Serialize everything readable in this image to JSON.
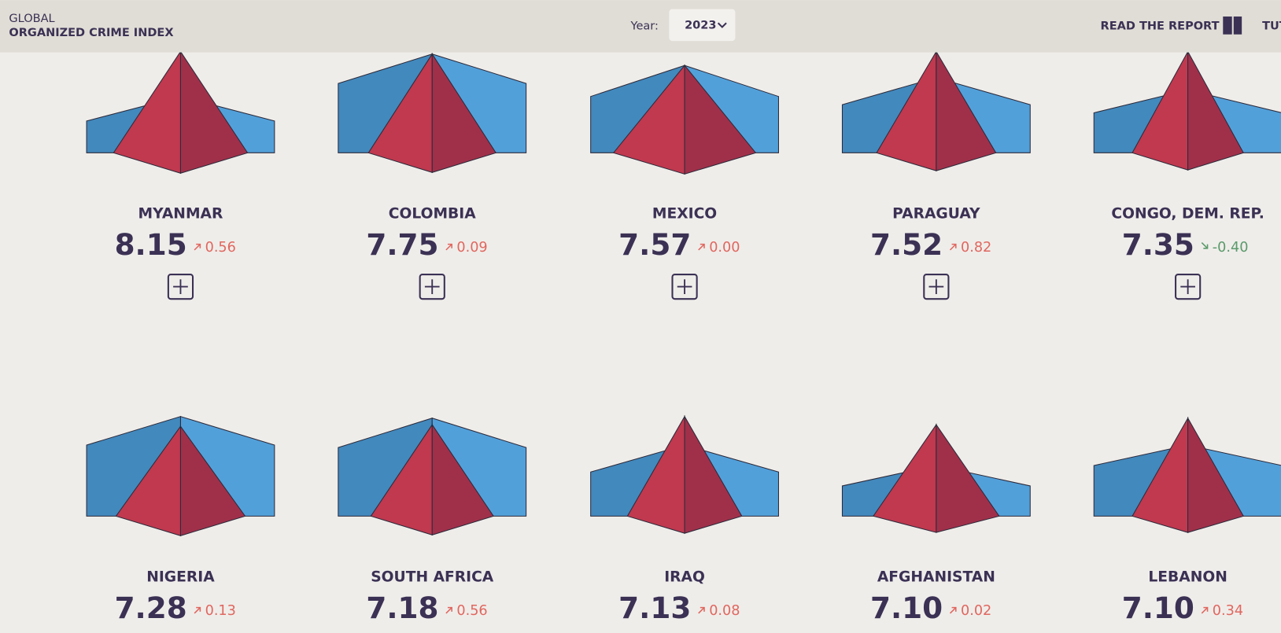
{
  "header": {
    "title_top": "GLOBAL",
    "title_main": "ORGANIZED CRIME INDEX",
    "year_label": "Year:",
    "year": "2023",
    "report": "READ THE REPORT",
    "tutorial": "TUT"
  },
  "countries": [
    {
      "name": "MYANMAR",
      "score": "8.15",
      "change": "0.56"
    },
    {
      "name": "COLOMBIA",
      "score": "7.75",
      "change": "0.09"
    },
    {
      "name": "MEXICO",
      "score": "7.57",
      "change": "0.00"
    },
    {
      "name": "PARAGUAY",
      "score": "7.52",
      "change": "0.82"
    },
    {
      "name": "CONGO, DEM. REP.",
      "score": "7.35",
      "change": "-0.40"
    },
    {
      "name": "NIGERIA",
      "score": "7.28",
      "change": "0.13"
    },
    {
      "name": "SOUTH AFRICA",
      "score": "7.18",
      "change": "0.56"
    },
    {
      "name": "IRAQ",
      "score": "7.13",
      "change": "0.08"
    },
    {
      "name": "AFGHANISTAN",
      "score": "7.10",
      "change": "0.02"
    },
    {
      "name": "LEBANON",
      "score": "7.10",
      "change": "0.34"
    }
  ]
}
